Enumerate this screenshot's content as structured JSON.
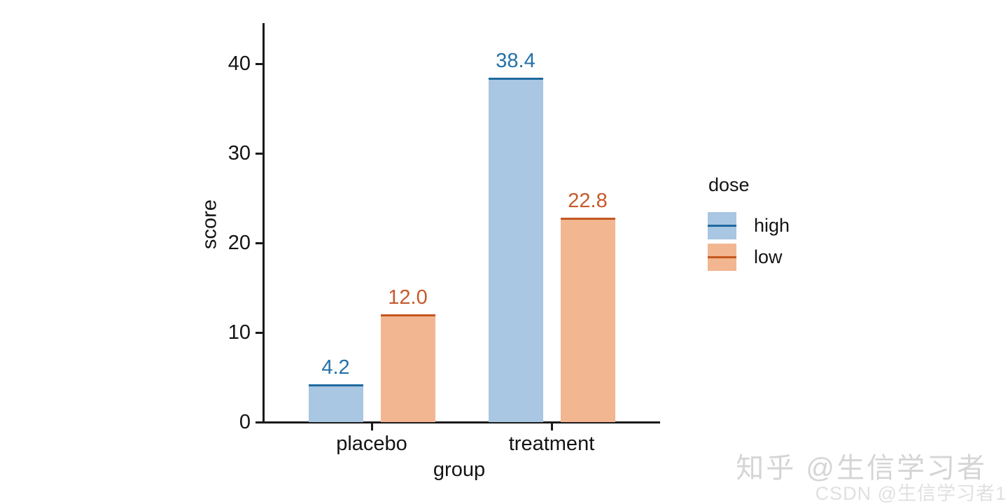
{
  "chart_data": {
    "type": "bar",
    "title": "",
    "xlabel": "group",
    "ylabel": "score",
    "categories": [
      "placebo",
      "treatment"
    ],
    "series": [
      {
        "name": "high",
        "values": [
          4.2,
          38.4
        ],
        "labels": [
          "4.2",
          "38.4"
        ],
        "fill": "#a9c6e2",
        "edge": "#1f6a9f",
        "label_color": "#2471a8"
      },
      {
        "name": "low",
        "values": [
          12.0,
          22.8
        ],
        "labels": [
          "12.0",
          "22.8"
        ],
        "fill": "#f2b691",
        "edge": "#c4571e",
        "label_color": "#c55a2b"
      }
    ],
    "ylim": [
      0,
      44.5
    ],
    "yticks": [
      0,
      10,
      20,
      30,
      40
    ],
    "legend_title": "dose",
    "legend_position": "right-center",
    "grid": false,
    "axis_color": "#1a1a1a",
    "background_color": "#ffffff"
  },
  "watermarks": {
    "zhihu": "知乎 @生信学习者",
    "csdn": "CSDN @生信学习者1"
  }
}
